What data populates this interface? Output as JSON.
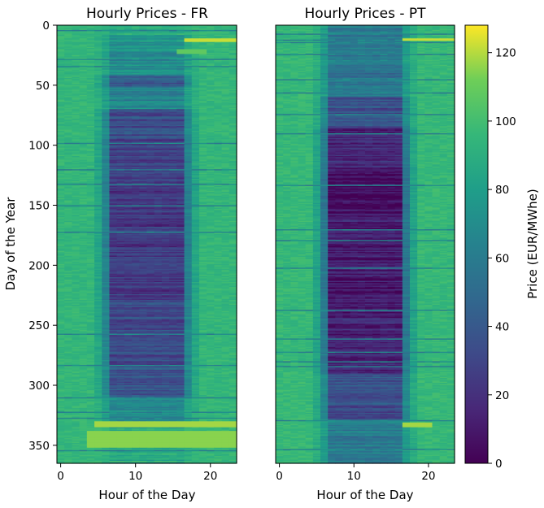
{
  "chart_data": [
    {
      "type": "heatmap",
      "title": "Hourly Prices - FR",
      "xlabel": "Hour of the Day",
      "ylabel": "Day of the Year",
      "xlim": [
        -0.5,
        23.5
      ],
      "ylim": [
        365,
        0
      ],
      "xticks": [
        0,
        10,
        20
      ],
      "yticks": [
        0,
        50,
        100,
        150,
        200,
        250,
        300,
        350
      ],
      "colormap": "viridis",
      "value_range": [
        0,
        128
      ],
      "base_price": 95,
      "day_bands": [
        {
          "day_start": 0,
          "day_end": 8,
          "midday_price": 90
        },
        {
          "day_start": 8,
          "day_end": 30,
          "midday_price": 72
        },
        {
          "day_start": 30,
          "day_end": 42,
          "midday_price": 68
        },
        {
          "day_start": 42,
          "day_end": 52,
          "midday_price": 42
        },
        {
          "day_start": 52,
          "day_end": 70,
          "midday_price": 65
        },
        {
          "day_start": 70,
          "day_end": 95,
          "midday_price": 35
        },
        {
          "day_start": 95,
          "day_end": 125,
          "midday_price": 28
        },
        {
          "day_start": 125,
          "day_end": 150,
          "midday_price": 22
        },
        {
          "day_start": 150,
          "day_end": 230,
          "midday_price": 24
        },
        {
          "day_start": 230,
          "day_end": 285,
          "midday_price": 32
        },
        {
          "day_start": 285,
          "day_end": 310,
          "midday_price": 38
        },
        {
          "day_start": 310,
          "day_end": 330,
          "midday_price": 70
        },
        {
          "day_start": 330,
          "day_end": 365,
          "midday_price": 88
        }
      ],
      "highlights": [
        {
          "day_start": 11,
          "day_end": 14,
          "hour_start": 17,
          "hour_end": 23,
          "price": 122
        },
        {
          "day_start": 20,
          "day_end": 24,
          "hour_start": 16,
          "hour_end": 19,
          "price": 108
        },
        {
          "day_start": 330,
          "day_end": 335,
          "hour_start": 5,
          "hour_end": 23,
          "price": 118
        },
        {
          "day_start": 338,
          "day_end": 352,
          "hour_start": 4,
          "hour_end": 23,
          "price": 115
        }
      ]
    },
    {
      "type": "heatmap",
      "title": "Hourly Prices - PT",
      "xlabel": "Hour of the Day",
      "ylabel": "",
      "xlim": [
        -0.5,
        23.5
      ],
      "ylim": [
        365,
        0
      ],
      "xticks": [
        0,
        10,
        20
      ],
      "yticks": [],
      "colormap": "viridis",
      "value_range": [
        0,
        128
      ],
      "base_price": 96,
      "day_bands": [
        {
          "day_start": 0,
          "day_end": 30,
          "midday_price": 60
        },
        {
          "day_start": 30,
          "day_end": 60,
          "midday_price": 55
        },
        {
          "day_start": 60,
          "day_end": 85,
          "midday_price": 35
        },
        {
          "day_start": 85,
          "day_end": 120,
          "midday_price": 15
        },
        {
          "day_start": 120,
          "day_end": 150,
          "midday_price": 5
        },
        {
          "day_start": 150,
          "day_end": 240,
          "midday_price": 10
        },
        {
          "day_start": 240,
          "day_end": 290,
          "midday_price": 15
        },
        {
          "day_start": 290,
          "day_end": 330,
          "midday_price": 35
        },
        {
          "day_start": 330,
          "day_end": 365,
          "midday_price": 60
        }
      ],
      "highlights": [
        {
          "day_start": 11,
          "day_end": 13,
          "hour_start": 17,
          "hour_end": 23,
          "price": 122
        },
        {
          "day_start": 331,
          "day_end": 335,
          "hour_start": 17,
          "hour_end": 20,
          "price": 118
        }
      ]
    }
  ],
  "colorbar": {
    "label": "Price (EUR/MWhe)",
    "range": [
      0,
      128
    ],
    "ticks": [
      0,
      20,
      40,
      60,
      80,
      100,
      120
    ]
  }
}
